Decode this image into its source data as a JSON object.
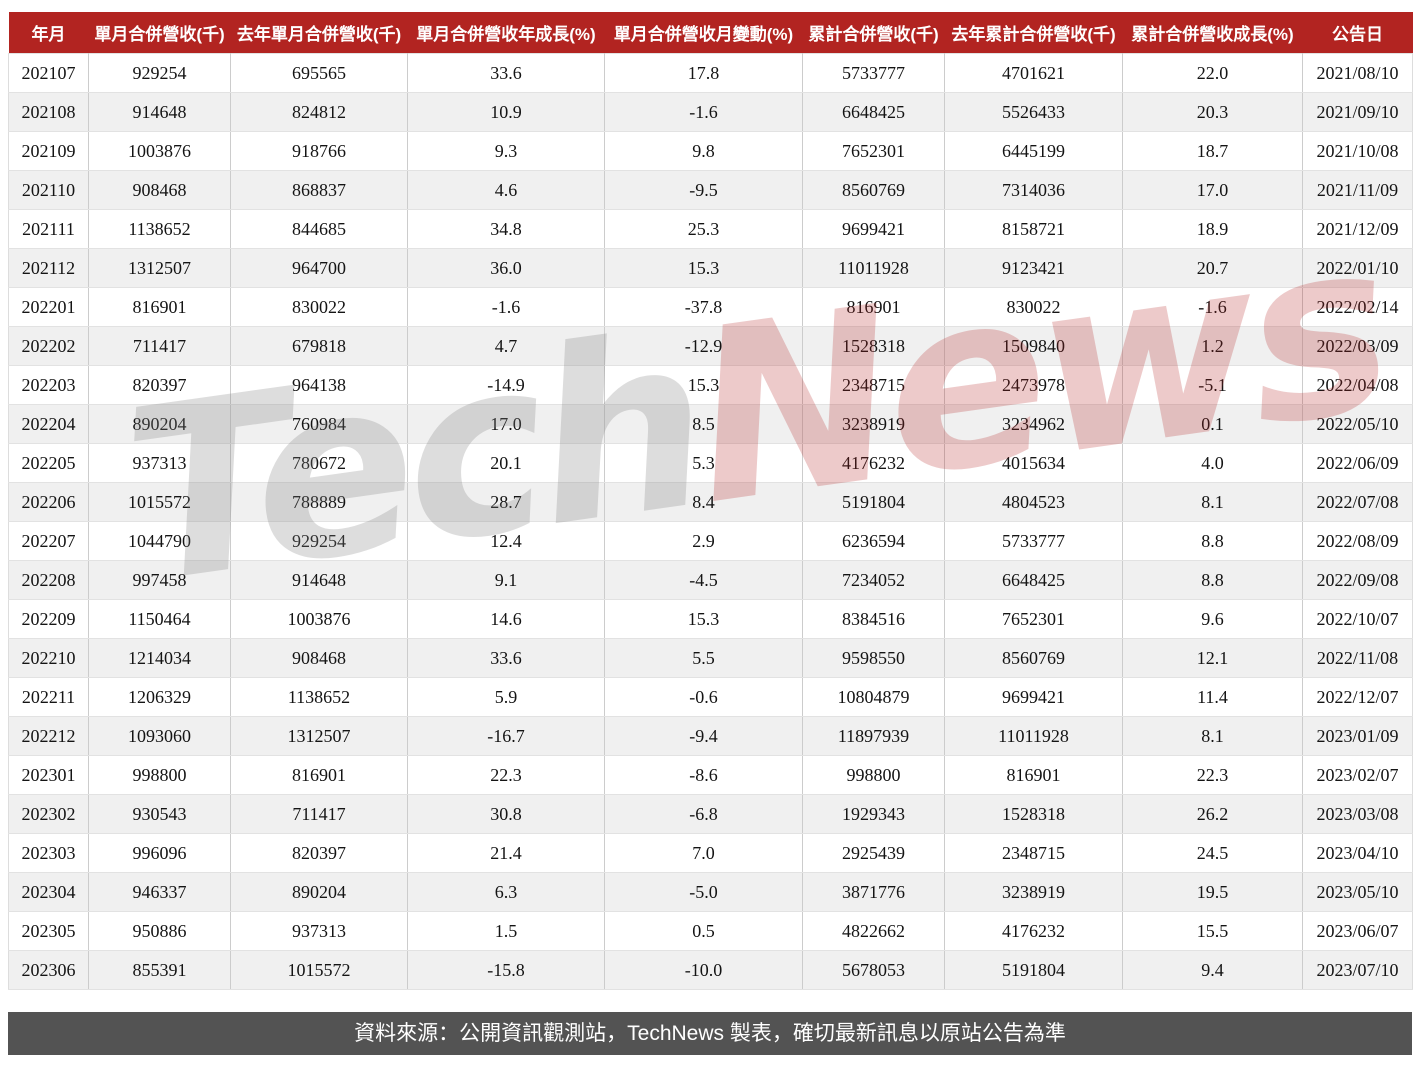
{
  "chart_data": {
    "type": "table",
    "title": "",
    "columns": [
      "年月",
      "單月合併營收(千)",
      "去年單月合併營收(千)",
      "單月合併營收年成長(%)",
      "單月合併營收月變動(%)",
      "累計合併營收(千)",
      "去年累計合併營收(千)",
      "累計合併營收成長(%)",
      "公告日"
    ],
    "rows": [
      [
        "202107",
        "929254",
        "695565",
        "33.6",
        "17.8",
        "5733777",
        "4701621",
        "22.0",
        "2021/08/10"
      ],
      [
        "202108",
        "914648",
        "824812",
        "10.9",
        "-1.6",
        "6648425",
        "5526433",
        "20.3",
        "2021/09/10"
      ],
      [
        "202109",
        "1003876",
        "918766",
        "9.3",
        "9.8",
        "7652301",
        "6445199",
        "18.7",
        "2021/10/08"
      ],
      [
        "202110",
        "908468",
        "868837",
        "4.6",
        "-9.5",
        "8560769",
        "7314036",
        "17.0",
        "2021/11/09"
      ],
      [
        "202111",
        "1138652",
        "844685",
        "34.8",
        "25.3",
        "9699421",
        "8158721",
        "18.9",
        "2021/12/09"
      ],
      [
        "202112",
        "1312507",
        "964700",
        "36.0",
        "15.3",
        "11011928",
        "9123421",
        "20.7",
        "2022/01/10"
      ],
      [
        "202201",
        "816901",
        "830022",
        "-1.6",
        "-37.8",
        "816901",
        "830022",
        "-1.6",
        "2022/02/14"
      ],
      [
        "202202",
        "711417",
        "679818",
        "4.7",
        "-12.9",
        "1528318",
        "1509840",
        "1.2",
        "2022/03/09"
      ],
      [
        "202203",
        "820397",
        "964138",
        "-14.9",
        "15.3",
        "2348715",
        "2473978",
        "-5.1",
        "2022/04/08"
      ],
      [
        "202204",
        "890204",
        "760984",
        "17.0",
        "8.5",
        "3238919",
        "3234962",
        "0.1",
        "2022/05/10"
      ],
      [
        "202205",
        "937313",
        "780672",
        "20.1",
        "5.3",
        "4176232",
        "4015634",
        "4.0",
        "2022/06/09"
      ],
      [
        "202206",
        "1015572",
        "788889",
        "28.7",
        "8.4",
        "5191804",
        "4804523",
        "8.1",
        "2022/07/08"
      ],
      [
        "202207",
        "1044790",
        "929254",
        "12.4",
        "2.9",
        "6236594",
        "5733777",
        "8.8",
        "2022/08/09"
      ],
      [
        "202208",
        "997458",
        "914648",
        "9.1",
        "-4.5",
        "7234052",
        "6648425",
        "8.8",
        "2022/09/08"
      ],
      [
        "202209",
        "1150464",
        "1003876",
        "14.6",
        "15.3",
        "8384516",
        "7652301",
        "9.6",
        "2022/10/07"
      ],
      [
        "202210",
        "1214034",
        "908468",
        "33.6",
        "5.5",
        "9598550",
        "8560769",
        "12.1",
        "2022/11/08"
      ],
      [
        "202211",
        "1206329",
        "1138652",
        "5.9",
        "-0.6",
        "10804879",
        "9699421",
        "11.4",
        "2022/12/07"
      ],
      [
        "202212",
        "1093060",
        "1312507",
        "-16.7",
        "-9.4",
        "11897939",
        "11011928",
        "8.1",
        "2023/01/09"
      ],
      [
        "202301",
        "998800",
        "816901",
        "22.3",
        "-8.6",
        "998800",
        "816901",
        "22.3",
        "2023/02/07"
      ],
      [
        "202302",
        "930543",
        "711417",
        "30.8",
        "-6.8",
        "1929343",
        "1528318",
        "26.2",
        "2023/03/08"
      ],
      [
        "202303",
        "996096",
        "820397",
        "21.4",
        "7.0",
        "2925439",
        "2348715",
        "24.5",
        "2023/04/10"
      ],
      [
        "202304",
        "946337",
        "890204",
        "6.3",
        "-5.0",
        "3871776",
        "3238919",
        "19.5",
        "2023/05/10"
      ],
      [
        "202305",
        "950886",
        "937313",
        "1.5",
        "0.5",
        "4822662",
        "4176232",
        "15.5",
        "2023/06/07"
      ],
      [
        "202306",
        "855391",
        "1015572",
        "-15.8",
        "-10.0",
        "5678053",
        "5191804",
        "9.4",
        "2023/07/10"
      ]
    ],
    "layout": {
      "grid": "on",
      "zebra_striping": true,
      "header_position": "top"
    }
  },
  "watermark": {
    "tech": "Tech",
    "news": "News"
  },
  "footer": {
    "text": "資料來源：公開資訊觀測站，TechNews 製表，確切最新訊息以原站公告為準"
  },
  "colors": {
    "header_bg": "#b22421",
    "header_text": "#ffffff",
    "row_bg": "#ffffff",
    "row_alt_bg": "#f0f0f0",
    "cell_border": "#cccccc",
    "footer_bg": "#535353",
    "footer_text": "#ffffff",
    "watermark_gray": "#808080",
    "watermark_red": "#b22222"
  }
}
